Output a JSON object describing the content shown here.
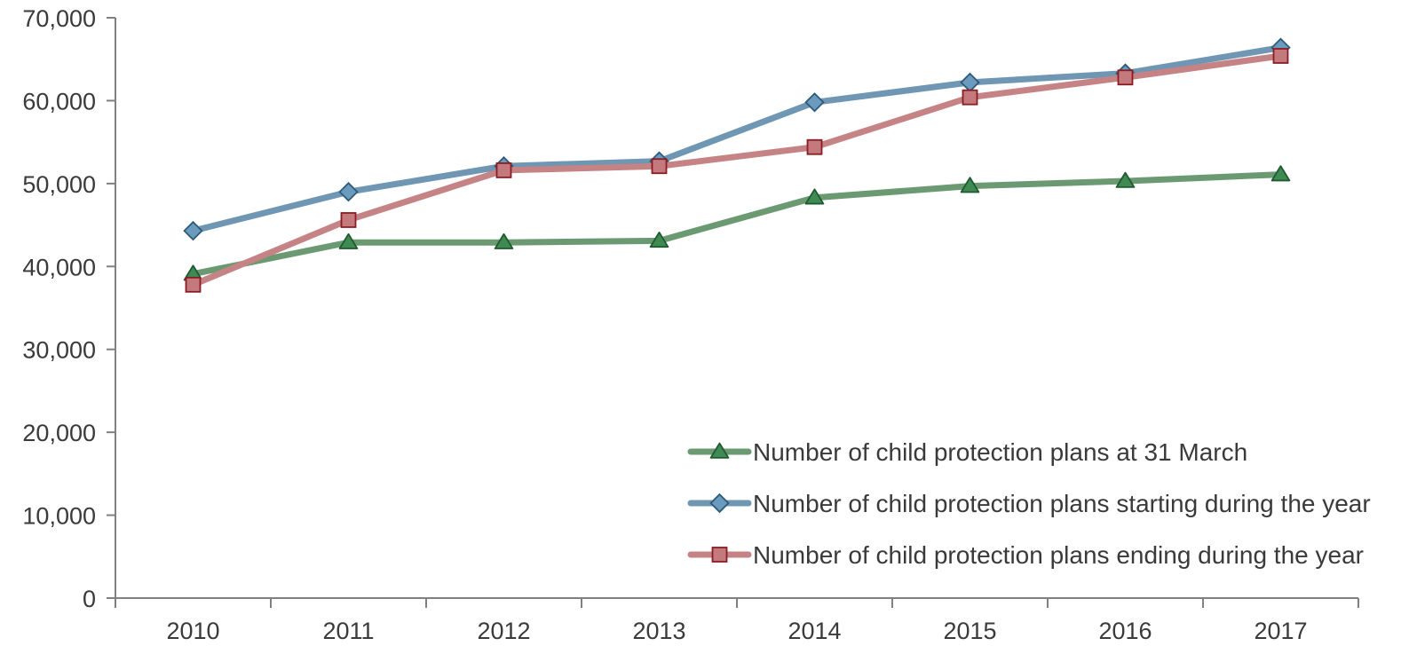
{
  "chart_data": {
    "type": "line",
    "title": "",
    "xlabel": "",
    "ylabel": "",
    "categories": [
      "2010",
      "2011",
      "2012",
      "2013",
      "2014",
      "2015",
      "2016",
      "2017"
    ],
    "ylim": [
      0,
      70000
    ],
    "yticks": [
      0,
      10000,
      20000,
      30000,
      40000,
      50000,
      60000,
      70000
    ],
    "ytick_labels": [
      "0",
      "10,000",
      "20,000",
      "30,000",
      "40,000",
      "50,000",
      "60,000",
      "70,000"
    ],
    "grid": false,
    "legend_position": "bottom-right",
    "series": [
      {
        "name": "Number of child protection plans at 31 March",
        "marker": "triangle",
        "color": "#6b9a72",
        "marker_fill": "#3f8a53",
        "marker_stroke": "#1f5a30",
        "values": [
          39100,
          42900,
          42900,
          43100,
          48300,
          49700,
          50300,
          51100
        ]
      },
      {
        "name": "Number of child protection plans starting during the year",
        "marker": "diamond",
        "color": "#6f97b3",
        "marker_fill": "#6a9bbe",
        "marker_stroke": "#2e5a78",
        "values": [
          44300,
          49000,
          52100,
          52700,
          59800,
          62200,
          63300,
          66400
        ]
      },
      {
        "name": "Number of child protection plans ending during the year",
        "marker": "square",
        "color": "#c58385",
        "marker_fill": "#c47a7d",
        "marker_stroke": "#8a1d24",
        "values": [
          37800,
          45600,
          51600,
          52100,
          54400,
          60400,
          62800,
          65400
        ]
      }
    ]
  }
}
